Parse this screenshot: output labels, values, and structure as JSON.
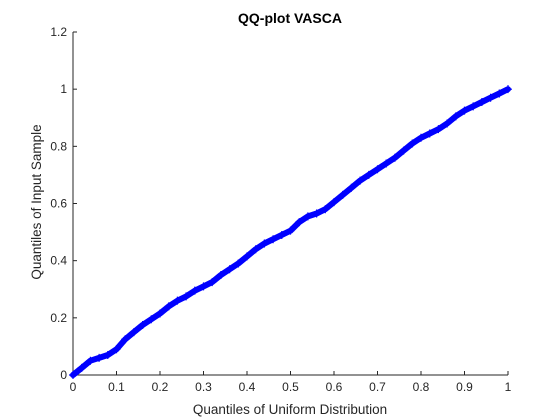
{
  "chart_data": {
    "type": "scatter",
    "title": "QQ-plot VASCA",
    "xlabel": "Quantiles of Uniform Distribution",
    "ylabel": "Quantiles of Input Sample",
    "xlim": [
      0,
      1
    ],
    "ylim": [
      0,
      1.2
    ],
    "xticks": [
      0,
      0.1,
      0.2,
      0.3,
      0.4,
      0.5,
      0.6,
      0.7,
      0.8,
      0.9,
      1
    ],
    "yticks": [
      0,
      0.2,
      0.4,
      0.6,
      0.8,
      1,
      1.2
    ],
    "grid": false,
    "marker": "+",
    "series_color": "#0000ff",
    "series": [
      {
        "x": [
          0.0,
          0.02,
          0.04,
          0.06,
          0.08,
          0.1,
          0.12,
          0.14,
          0.16,
          0.18,
          0.2,
          0.22,
          0.24,
          0.26,
          0.28,
          0.3,
          0.32,
          0.34,
          0.36,
          0.38,
          0.4,
          0.42,
          0.44,
          0.46,
          0.48,
          0.5,
          0.52,
          0.54,
          0.56,
          0.58,
          0.6,
          0.62,
          0.64,
          0.66,
          0.68,
          0.7,
          0.72,
          0.74,
          0.76,
          0.78,
          0.8,
          0.82,
          0.84,
          0.86,
          0.88,
          0.9,
          0.92,
          0.94,
          0.96,
          0.98,
          1.0
        ],
        "y": [
          0.0,
          0.025,
          0.05,
          0.06,
          0.07,
          0.09,
          0.125,
          0.15,
          0.175,
          0.195,
          0.215,
          0.24,
          0.26,
          0.275,
          0.295,
          0.31,
          0.325,
          0.35,
          0.37,
          0.39,
          0.415,
          0.44,
          0.46,
          0.475,
          0.49,
          0.505,
          0.535,
          0.555,
          0.565,
          0.58,
          0.605,
          0.63,
          0.655,
          0.68,
          0.7,
          0.72,
          0.74,
          0.76,
          0.785,
          0.81,
          0.83,
          0.845,
          0.86,
          0.88,
          0.905,
          0.925,
          0.94,
          0.955,
          0.97,
          0.985,
          1.0
        ]
      }
    ]
  }
}
